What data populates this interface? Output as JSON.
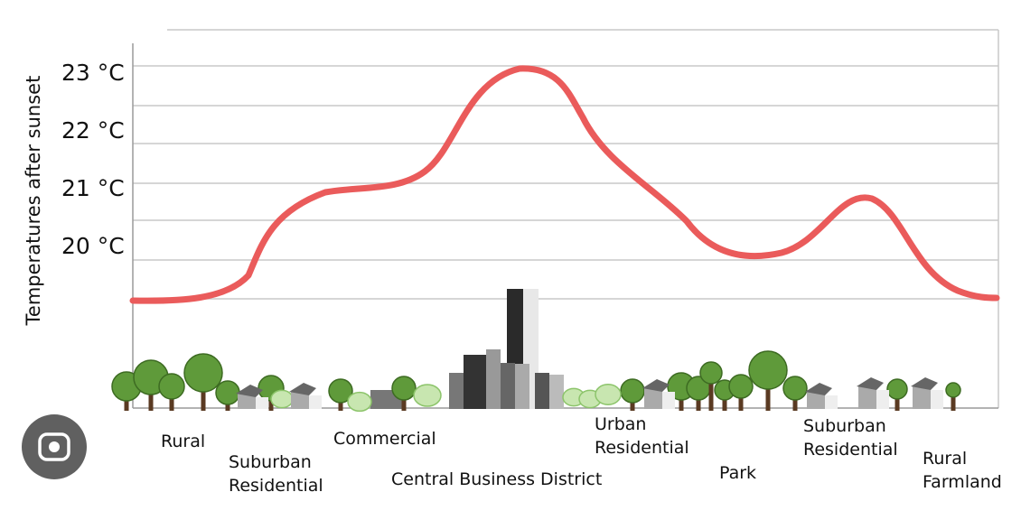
{
  "y_axis": {
    "title": "Temperatures after sunset",
    "labels": [
      "23 °C",
      "22 °C",
      "21 °C",
      "20 °C"
    ]
  },
  "zones": [
    {
      "lines": [
        "Rural"
      ]
    },
    {
      "lines": [
        "Suburban",
        "Residential"
      ]
    },
    {
      "lines": [
        "Commercial"
      ]
    },
    {
      "lines": [
        "Central Business District"
      ]
    },
    {
      "lines": [
        "Urban",
        "Residential"
      ]
    },
    {
      "lines": [
        "Park"
      ]
    },
    {
      "lines": [
        "Suburban",
        "Residential"
      ]
    },
    {
      "lines": [
        "Rural",
        "Farmland"
      ]
    }
  ]
}
